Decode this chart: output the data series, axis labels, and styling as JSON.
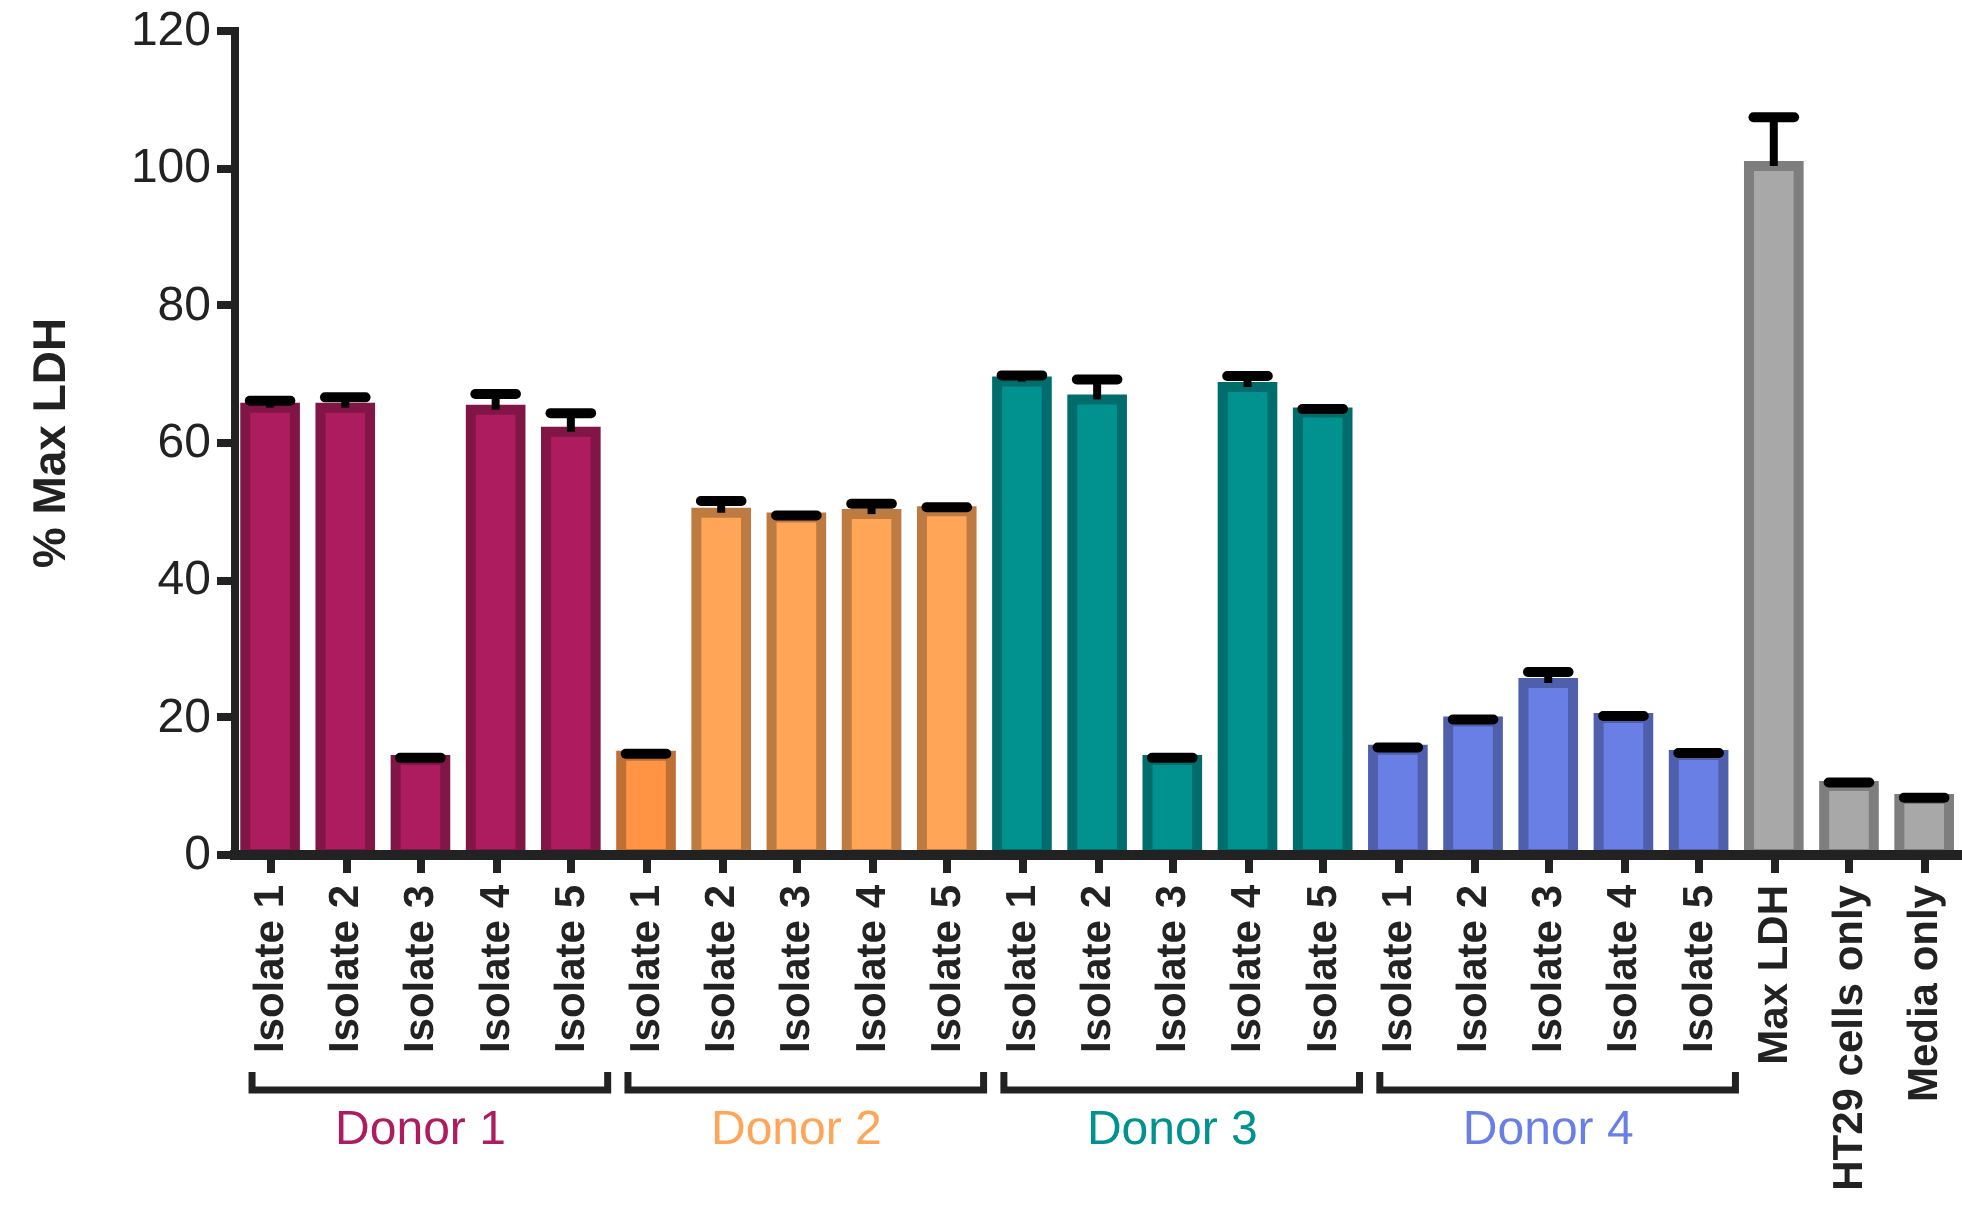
{
  "chart_data": {
    "type": "bar",
    "ylabel": "% Max LDH",
    "categories": [
      "Isolate 1",
      "Isolate 2",
      "Isolate 3",
      "Isolate 4",
      "Isolate 5",
      "Isolate 1",
      "Isolate 2",
      "Isolate 3",
      "Isolate 4",
      "Isolate 5",
      "Isolate 1",
      "Isolate 2",
      "Isolate 3",
      "Isolate 4",
      "Isolate 5",
      "Isolate 1",
      "Isolate 2",
      "Isolate 3",
      "Isolate 4",
      "Isolate 5",
      "Max LDH",
      "HT29 cells only",
      "Media only"
    ],
    "ylim": [
      0,
      120
    ],
    "yticks": [
      0,
      20,
      40,
      60,
      80,
      100,
      120
    ],
    "series": [
      {
        "name": "Donor 1",
        "color": "#ad1c5e",
        "values": [
          65,
          65,
          13.7,
          64.7,
          61.5,
          null,
          null,
          null,
          null,
          null,
          null,
          null,
          null,
          null,
          null,
          null,
          null,
          null,
          null,
          null,
          null,
          null,
          null
        ],
        "errors": [
          [
            65,
            66
          ],
          [
            65,
            66.5
          ],
          [
            13.7,
            14
          ],
          [
            64.7,
            67
          ],
          [
            61.5,
            64.2
          ],
          null,
          null,
          null,
          null,
          null,
          null,
          null,
          null,
          null,
          null,
          null,
          null,
          null,
          null,
          null,
          null,
          null,
          null
        ]
      },
      {
        "name": "Donor 2",
        "color": "#fea557",
        "colors": [
          null,
          null,
          null,
          null,
          null,
          "#fe9444",
          null,
          null,
          null,
          null,
          null,
          null,
          null,
          null,
          null,
          null,
          null,
          null,
          null,
          null,
          null,
          null,
          null
        ],
        "values": [
          null,
          null,
          null,
          null,
          null,
          14.3,
          49.7,
          49,
          49.5,
          49.9,
          null,
          null,
          null,
          null,
          null,
          null,
          null,
          null,
          null,
          null,
          null,
          null,
          null
        ],
        "errors": [
          null,
          null,
          null,
          null,
          null,
          [
            14.3,
            14.6
          ],
          [
            49.7,
            51.4
          ],
          [
            49,
            49.3
          ],
          [
            49.5,
            51
          ],
          [
            49.9,
            50.5
          ],
          null,
          null,
          null,
          null,
          null,
          null,
          null,
          null,
          null,
          null,
          null,
          null,
          null
        ]
      },
      {
        "name": "Donor 3",
        "color": "#01918f",
        "values": [
          null,
          null,
          null,
          null,
          null,
          null,
          null,
          null,
          null,
          null,
          68.8,
          66.2,
          13.7,
          68,
          64.3,
          null,
          null,
          null,
          null,
          null,
          null,
          null,
          null
        ],
        "errors": [
          null,
          null,
          null,
          null,
          null,
          null,
          null,
          null,
          null,
          null,
          [
            68.8,
            69.7
          ],
          [
            66.2,
            69.1
          ],
          [
            13.7,
            14
          ],
          [
            68,
            69.6
          ],
          [
            64.3,
            64.8
          ],
          null,
          null,
          null,
          null,
          null,
          null,
          null,
          null
        ]
      },
      {
        "name": "Donor 4",
        "color": "#6a7fe6",
        "values": [
          null,
          null,
          null,
          null,
          null,
          null,
          null,
          null,
          null,
          null,
          null,
          null,
          null,
          null,
          null,
          15.2,
          19.3,
          24.9,
          19.8,
          14.4,
          null,
          null,
          null
        ],
        "errors": [
          null,
          null,
          null,
          null,
          null,
          null,
          null,
          null,
          null,
          null,
          null,
          null,
          null,
          null,
          null,
          [
            15.2,
            15.5
          ],
          [
            19.3,
            19.6
          ],
          [
            24.9,
            26.5
          ],
          [
            19.8,
            20.1
          ],
          [
            14.4,
            14.7
          ],
          null,
          null,
          null
        ]
      },
      {
        "color": "#a8a8a8",
        "values": [
          null,
          null,
          null,
          null,
          null,
          null,
          null,
          null,
          null,
          null,
          null,
          null,
          null,
          null,
          null,
          null,
          null,
          null,
          null,
          null,
          100.2,
          9.9,
          8
        ],
        "errors": [
          null,
          null,
          null,
          null,
          null,
          null,
          null,
          null,
          null,
          null,
          null,
          null,
          null,
          null,
          null,
          null,
          null,
          null,
          null,
          null,
          [
            100.2,
            107.3
          ],
          [
            9.9,
            10.4
          ],
          [
            8,
            8.2
          ]
        ]
      }
    ]
  }
}
